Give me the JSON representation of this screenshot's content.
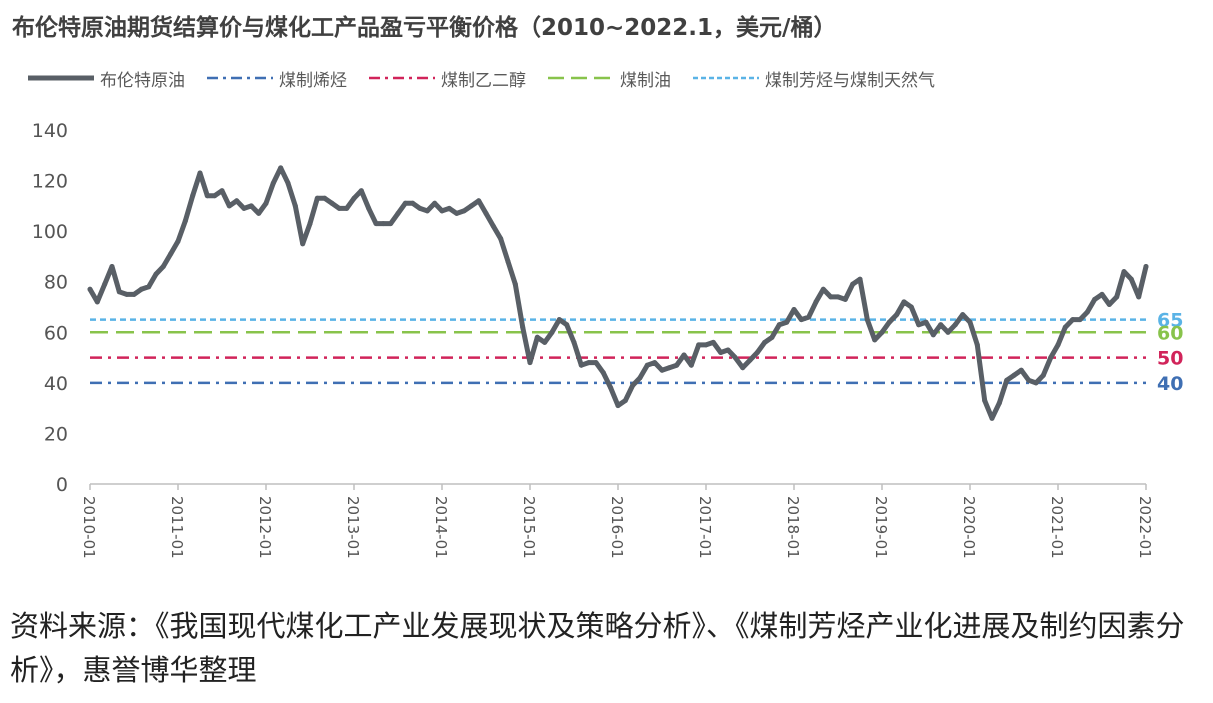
{
  "chart_data": {
    "type": "line",
    "title": "布伦特原油期货结算价与煤化工产品盈亏平衡价格（2010~2022.1，美元/桶）",
    "xlabel": "",
    "ylabel": "",
    "x_ticks": [
      "2010-01",
      "2011-01",
      "2012-01",
      "2013-01",
      "2014-01",
      "2015-01",
      "2016-01",
      "2017-01",
      "2018-01",
      "2019-01",
      "2020-01",
      "2021-01",
      "2022-01"
    ],
    "y_ticks": [
      0,
      20,
      40,
      60,
      80,
      100,
      120,
      140
    ],
    "ylim": [
      0,
      140
    ],
    "xlim": [
      "2010-01",
      "2022-01"
    ],
    "grid": false,
    "legend_position": "top",
    "series": [
      {
        "name": "布伦特原油",
        "style": "solid-thick",
        "color": "#595f66",
        "points": [
          [
            "2010-01",
            77
          ],
          [
            "2010-02",
            72
          ],
          [
            "2010-03",
            79
          ],
          [
            "2010-04",
            86
          ],
          [
            "2010-05",
            76
          ],
          [
            "2010-06",
            75
          ],
          [
            "2010-07",
            75
          ],
          [
            "2010-08",
            77
          ],
          [
            "2010-09",
            78
          ],
          [
            "2010-10",
            83
          ],
          [
            "2010-11",
            86
          ],
          [
            "2010-12",
            91
          ],
          [
            "2011-01",
            96
          ],
          [
            "2011-02",
            104
          ],
          [
            "2011-03",
            114
          ],
          [
            "2011-04",
            123
          ],
          [
            "2011-05",
            114
          ],
          [
            "2011-06",
            114
          ],
          [
            "2011-07",
            116
          ],
          [
            "2011-08",
            110
          ],
          [
            "2011-09",
            112
          ],
          [
            "2011-10",
            109
          ],
          [
            "2011-11",
            110
          ],
          [
            "2011-12",
            107
          ],
          [
            "2012-01",
            111
          ],
          [
            "2012-02",
            119
          ],
          [
            "2012-03",
            125
          ],
          [
            "2012-04",
            119
          ],
          [
            "2012-05",
            110
          ],
          [
            "2012-06",
            95
          ],
          [
            "2012-07",
            103
          ],
          [
            "2012-08",
            113
          ],
          [
            "2012-09",
            113
          ],
          [
            "2012-10",
            111
          ],
          [
            "2012-11",
            109
          ],
          [
            "2012-12",
            109
          ],
          [
            "2013-01",
            113
          ],
          [
            "2013-02",
            116
          ],
          [
            "2013-03",
            109
          ],
          [
            "2013-04",
            103
          ],
          [
            "2013-05",
            103
          ],
          [
            "2013-06",
            103
          ],
          [
            "2013-07",
            107
          ],
          [
            "2013-08",
            111
          ],
          [
            "2013-09",
            111
          ],
          [
            "2013-10",
            109
          ],
          [
            "2013-11",
            108
          ],
          [
            "2013-12",
            111
          ],
          [
            "2014-01",
            108
          ],
          [
            "2014-02",
            109
          ],
          [
            "2014-03",
            107
          ],
          [
            "2014-04",
            108
          ],
          [
            "2014-05",
            110
          ],
          [
            "2014-06",
            112
          ],
          [
            "2014-07",
            107
          ],
          [
            "2014-08",
            102
          ],
          [
            "2014-09",
            97
          ],
          [
            "2014-10",
            88
          ],
          [
            "2014-11",
            79
          ],
          [
            "2014-12",
            62
          ],
          [
            "2015-01",
            48
          ],
          [
            "2015-02",
            58
          ],
          [
            "2015-03",
            56
          ],
          [
            "2015-04",
            60
          ],
          [
            "2015-05",
            65
          ],
          [
            "2015-06",
            63
          ],
          [
            "2015-07",
            56
          ],
          [
            "2015-08",
            47
          ],
          [
            "2015-09",
            48
          ],
          [
            "2015-10",
            48
          ],
          [
            "2015-11",
            44
          ],
          [
            "2015-12",
            38
          ],
          [
            "2016-01",
            31
          ],
          [
            "2016-02",
            33
          ],
          [
            "2016-03",
            39
          ],
          [
            "2016-04",
            42
          ],
          [
            "2016-05",
            47
          ],
          [
            "2016-06",
            48
          ],
          [
            "2016-07",
            45
          ],
          [
            "2016-08",
            46
          ],
          [
            "2016-09",
            47
          ],
          [
            "2016-10",
            51
          ],
          [
            "2016-11",
            47
          ],
          [
            "2016-12",
            55
          ],
          [
            "2017-01",
            55
          ],
          [
            "2017-02",
            56
          ],
          [
            "2017-03",
            52
          ],
          [
            "2017-04",
            53
          ],
          [
            "2017-05",
            50
          ],
          [
            "2017-06",
            46
          ],
          [
            "2017-07",
            49
          ],
          [
            "2017-08",
            52
          ],
          [
            "2017-09",
            56
          ],
          [
            "2017-10",
            58
          ],
          [
            "2017-11",
            63
          ],
          [
            "2017-12",
            64
          ],
          [
            "2018-01",
            69
          ],
          [
            "2018-02",
            65
          ],
          [
            "2018-03",
            66
          ],
          [
            "2018-04",
            72
          ],
          [
            "2018-05",
            77
          ],
          [
            "2018-06",
            74
          ],
          [
            "2018-07",
            74
          ],
          [
            "2018-08",
            73
          ],
          [
            "2018-09",
            79
          ],
          [
            "2018-10",
            81
          ],
          [
            "2018-11",
            65
          ],
          [
            "2018-12",
            57
          ],
          [
            "2019-01",
            60
          ],
          [
            "2019-02",
            64
          ],
          [
            "2019-03",
            67
          ],
          [
            "2019-04",
            72
          ],
          [
            "2019-05",
            70
          ],
          [
            "2019-06",
            63
          ],
          [
            "2019-07",
            64
          ],
          [
            "2019-08",
            59
          ],
          [
            "2019-09",
            63
          ],
          [
            "2019-10",
            60
          ],
          [
            "2019-11",
            63
          ],
          [
            "2019-12",
            67
          ],
          [
            "2020-01",
            64
          ],
          [
            "2020-02",
            55
          ],
          [
            "2020-03",
            33
          ],
          [
            "2020-04",
            26
          ],
          [
            "2020-05",
            32
          ],
          [
            "2020-06",
            41
          ],
          [
            "2020-07",
            43
          ],
          [
            "2020-08",
            45
          ],
          [
            "2020-09",
            41
          ],
          [
            "2020-10",
            40
          ],
          [
            "2020-11",
            43
          ],
          [
            "2020-12",
            50
          ],
          [
            "2021-01",
            55
          ],
          [
            "2021-02",
            62
          ],
          [
            "2021-03",
            65
          ],
          [
            "2021-04",
            65
          ],
          [
            "2021-05",
            68
          ],
          [
            "2021-06",
            73
          ],
          [
            "2021-07",
            75
          ],
          [
            "2021-08",
            71
          ],
          [
            "2021-09",
            74
          ],
          [
            "2021-10",
            84
          ],
          [
            "2021-11",
            81
          ],
          [
            "2021-12",
            74
          ],
          [
            "2022-01",
            86
          ]
        ]
      },
      {
        "name": "煤制烯烃",
        "style": "dash-dot",
        "color": "#3f6fb3",
        "value": 40
      },
      {
        "name": "煤制乙二醇",
        "style": "dash-dot",
        "color": "#d1245a",
        "value": 50
      },
      {
        "name": "煤制油",
        "style": "dashed",
        "color": "#88c34b",
        "value": 60
      },
      {
        "name": "煤制芳烃与煤制天然气",
        "style": "dotted",
        "color": "#5ab3e6",
        "value": 65
      }
    ],
    "reference_labels": [
      {
        "text": "65",
        "value": 65,
        "color": "#5ab3e6"
      },
      {
        "text": "60",
        "value": 60,
        "color": "#88c34b"
      },
      {
        "text": "50",
        "value": 50,
        "color": "#d1245a"
      },
      {
        "text": "40",
        "value": 40,
        "color": "#3f6fb3"
      }
    ]
  },
  "source_note": "资料来源：《我国现代煤化工产业发展现状及策略分析》、《煤制芳烃产业化进展及制约因素分析》，惠誉博华整理"
}
